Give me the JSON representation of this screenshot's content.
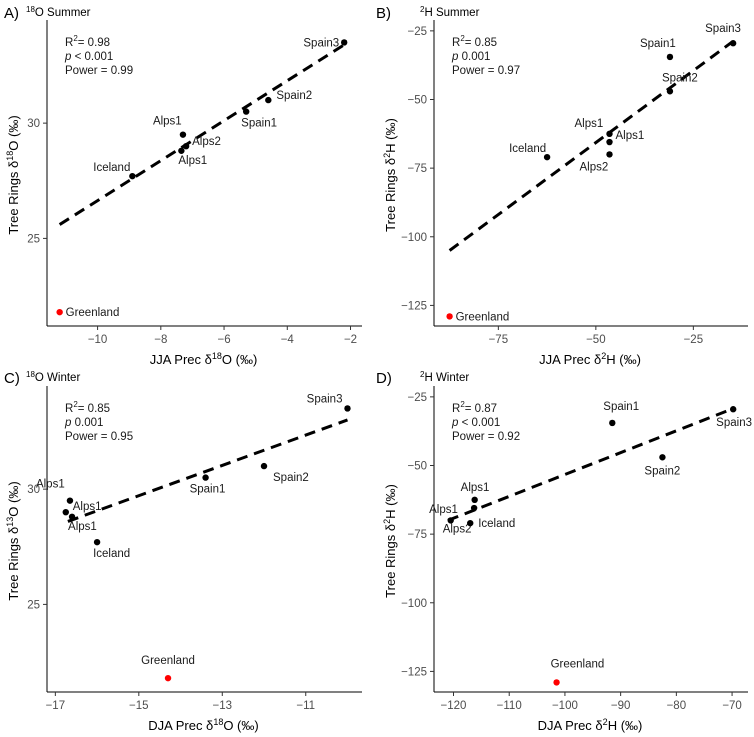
{
  "chart_data": [
    {
      "panel": "A)",
      "type": "scatter",
      "title": "18O Summer",
      "xlabel": "JJA Prec δ18O (‰)",
      "ylabel": "Tree Rings δ18O (‰)",
      "xlim": [
        -11.6,
        -1.7
      ],
      "ylim": [
        21.2,
        34.3
      ],
      "xticks": [
        -10,
        -8,
        -6,
        -4,
        -2
      ],
      "xtick_labels": [
        "−10",
        "−8",
        "−6",
        "−4",
        "−2"
      ],
      "yticks": [
        25,
        30
      ],
      "ytick_labels": [
        "25",
        "30"
      ],
      "stats": {
        "r2": "0.98",
        "p": "< 0.001",
        "power": "0.99"
      },
      "regression": {
        "x": [
          -11.2,
          -2.2
        ],
        "y": [
          25.6,
          33.4
        ]
      },
      "points": [
        {
          "label": "Greenland",
          "x": -11.2,
          "y": 21.8,
          "color": "#ff0000"
        },
        {
          "label": "Iceland",
          "x": -8.9,
          "y": 27.7,
          "color": "#000000"
        },
        {
          "label": "Alps1",
          "x": -7.3,
          "y": 29.5,
          "color": "#000000"
        },
        {
          "label": "Alps2",
          "x": -7.2,
          "y": 29.0,
          "color": "#000000"
        },
        {
          "label": "Alps1",
          "x": -7.35,
          "y": 28.8,
          "color": "#000000"
        },
        {
          "label": "Spain1",
          "x": -5.3,
          "y": 30.5,
          "color": "#000000"
        },
        {
          "label": "Spain2",
          "x": -4.6,
          "y": 31.0,
          "color": "#000000"
        },
        {
          "label": "Spain3",
          "x": -2.2,
          "y": 33.5,
          "color": "#000000"
        }
      ]
    },
    {
      "panel": "B)",
      "type": "scatter",
      "title": "2H Summer",
      "xlabel": "JJA Prec δ2H (‰)",
      "ylabel": "Tree Rings δ2H (‰)",
      "xlim": [
        -91.5,
        -11.5
      ],
      "ylim": [
        -132.5,
        -22.5
      ],
      "xticks": [
        -75,
        -50,
        -25
      ],
      "xtick_labels": [
        "−75",
        "−50",
        "−25"
      ],
      "yticks": [
        -125,
        -100,
        -75,
        -50,
        -25
      ],
      "ytick_labels": [
        "−125",
        "−100",
        "−75",
        "−50",
        "−25"
      ],
      "stats": {
        "r2": "0.85",
        "p": "0.001",
        "power": "0.97"
      },
      "regression": {
        "x": [
          -87.5,
          -15.0
        ],
        "y": [
          -105.0,
          -29.0
        ]
      },
      "points": [
        {
          "label": "Greenland",
          "x": -87.5,
          "y": -129.0,
          "color": "#ff0000"
        },
        {
          "label": "Iceland",
          "x": -62.5,
          "y": -71.0,
          "color": "#000000"
        },
        {
          "label": "Alps1",
          "x": -46.5,
          "y": -62.5,
          "color": "#000000"
        },
        {
          "label": "Alps1",
          "x": -46.5,
          "y": -65.5,
          "color": "#000000"
        },
        {
          "label": "Alps2",
          "x": -46.5,
          "y": -70.0,
          "color": "#000000"
        },
        {
          "label": "Spain1",
          "x": -31.0,
          "y": -34.5,
          "color": "#000000"
        },
        {
          "label": "Spain2",
          "x": -31.0,
          "y": -47.0,
          "color": "#000000"
        },
        {
          "label": "Spain3",
          "x": -14.8,
          "y": -29.5,
          "color": "#000000"
        }
      ]
    },
    {
      "panel": "C)",
      "type": "scatter",
      "title": "18O Winter",
      "xlabel": "DJA Prec δ18O (‰)",
      "ylabel": "Tree Rings δ13O (‰)",
      "xlim": [
        -17.2,
        -9.7
      ],
      "ylim": [
        21.2,
        34.3
      ],
      "xticks": [
        -17,
        -15,
        -13,
        -11
      ],
      "xtick_labels": [
        "−17",
        "−15",
        "−13",
        "−11"
      ],
      "yticks": [
        25,
        30
      ],
      "ytick_labels": [
        "25",
        "30"
      ],
      "stats": {
        "r2": "0.85",
        "p": "0.001",
        "power": "0.95"
      },
      "regression": {
        "x": [
          -16.7,
          -10.0
        ],
        "y": [
          28.6,
          33.0
        ]
      },
      "points": [
        {
          "label": "Greenland",
          "x": -14.3,
          "y": 21.8,
          "color": "#ff0000"
        },
        {
          "label": "Iceland",
          "x": -16.0,
          "y": 27.7,
          "color": "#000000"
        },
        {
          "label": "Alps1",
          "x": -16.65,
          "y": 29.5,
          "color": "#000000"
        },
        {
          "label": "Alps1",
          "x": -16.75,
          "y": 29.0,
          "color": "#000000"
        },
        {
          "label": "Alps1",
          "x": -16.6,
          "y": 28.8,
          "color": "#000000"
        },
        {
          "label": "Spain1",
          "x": -13.4,
          "y": 30.5,
          "color": "#000000"
        },
        {
          "label": "Spain2",
          "x": -12.0,
          "y": 31.0,
          "color": "#000000"
        },
        {
          "label": "Spain3",
          "x": -10.0,
          "y": 33.5,
          "color": "#000000"
        }
      ]
    },
    {
      "panel": "D)",
      "type": "scatter",
      "title": "2H Winter",
      "xlabel": "DJA Prec δ2H (‰)",
      "ylabel": "Tree Rings δ2H (‰)",
      "xlim": [
        -123.5,
        -67.5
      ],
      "ylim": [
        -132.5,
        -22.5
      ],
      "xticks": [
        -120,
        -110,
        -100,
        -90,
        -80,
        -70
      ],
      "xtick_labels": [
        "−120",
        "−110",
        "−100",
        "−90",
        "−80",
        "−70"
      ],
      "yticks": [
        -125,
        -100,
        -75,
        -50,
        -25
      ],
      "ytick_labels": [
        "−125",
        "−100",
        "−75",
        "−50",
        "−25"
      ],
      "stats": {
        "r2": "0.87",
        "p": "< 0.001",
        "power": "0.92"
      },
      "regression": {
        "x": [
          -121.0,
          -69.5
        ],
        "y": [
          -70.0,
          -29.0
        ]
      },
      "points": [
        {
          "label": "Greenland",
          "x": -101.5,
          "y": -129.0,
          "color": "#ff0000"
        },
        {
          "label": "Alps2",
          "x": -120.5,
          "y": -70.0,
          "color": "#000000"
        },
        {
          "label": "Alps1",
          "x": -116.2,
          "y": -62.5,
          "color": "#000000"
        },
        {
          "label": "Alps1",
          "x": -116.3,
          "y": -65.5,
          "color": "#000000"
        },
        {
          "label": "Iceland",
          "x": -117.0,
          "y": -71.0,
          "color": "#000000"
        },
        {
          "label": "Spain1",
          "x": -91.5,
          "y": -34.5,
          "color": "#000000"
        },
        {
          "label": "Spain2",
          "x": -82.5,
          "y": -47.0,
          "color": "#000000"
        },
        {
          "label": "Spain3",
          "x": -69.8,
          "y": -29.5,
          "color": "#000000"
        }
      ]
    }
  ]
}
